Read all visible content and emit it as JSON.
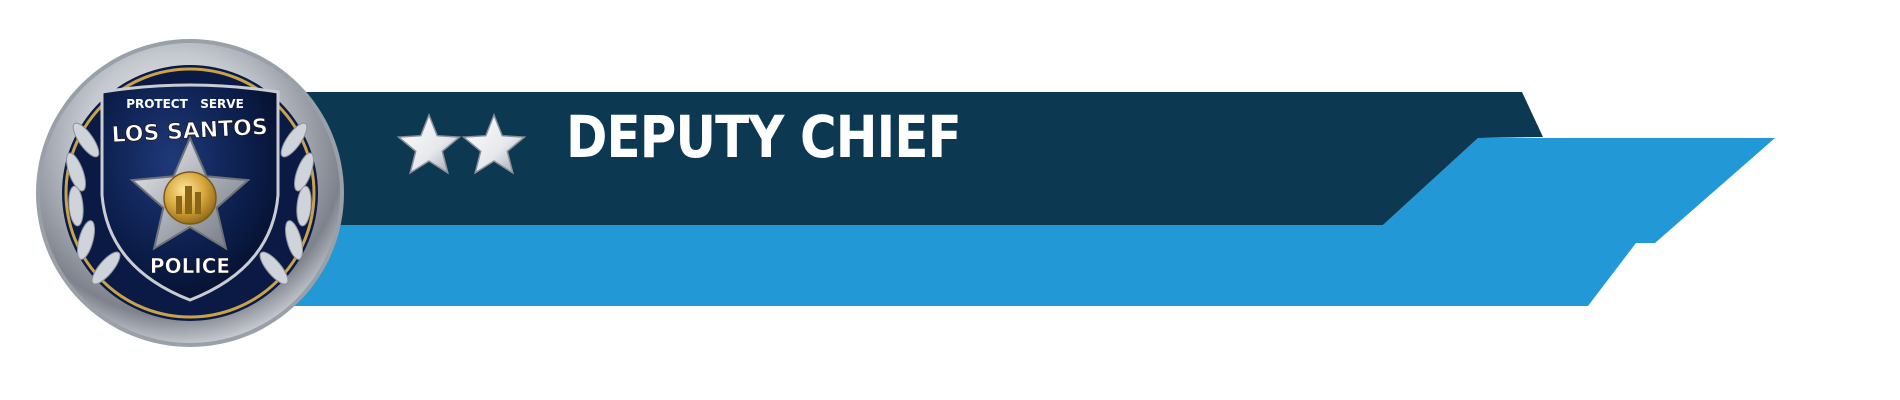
{
  "rank": {
    "title": "DEPUTY CHIEF",
    "star_count": 2
  },
  "badge": {
    "top_left_text": "PROTECT",
    "top_right_text": "SERVE",
    "arc_text": "LOS SANTOS",
    "bottom_text": "POLICE"
  },
  "colors": {
    "dark_navy": "#0c3851",
    "bright_blue": "#2298d6",
    "badge_shield": "#0b1d4a",
    "badge_gold": "#c9a24a",
    "silver": "#c9ccd3"
  }
}
